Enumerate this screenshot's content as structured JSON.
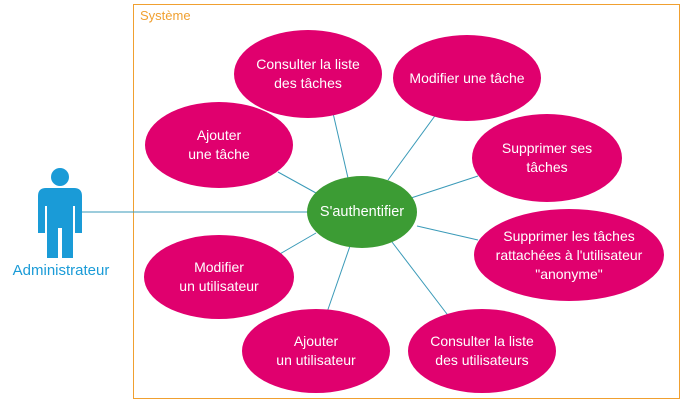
{
  "system": {
    "title": "Système",
    "border_color": "#f0a030"
  },
  "actor": {
    "label": "Administrateur",
    "color": "#1a9bd7"
  },
  "colors": {
    "use_case": "#e0006e",
    "central": "#3c9c34",
    "line": "#3a9ab8"
  },
  "central_use_case": {
    "label": "S'authentifier"
  },
  "use_cases": [
    {
      "label": "Consulter la liste\ndes tâches"
    },
    {
      "label": "Modifier une tâche"
    },
    {
      "label": "Ajouter\nune tâche"
    },
    {
      "label": "Supprimer ses\ntâches"
    },
    {
      "label": "Supprimer les tâches\nrattachées à l'utilisateur\n\"anonyme\""
    },
    {
      "label": "Modifier\nun utilisateur"
    },
    {
      "label": "Ajouter\nun utilisateur"
    },
    {
      "label": "Consulter la liste\ndes utilisateurs"
    }
  ]
}
